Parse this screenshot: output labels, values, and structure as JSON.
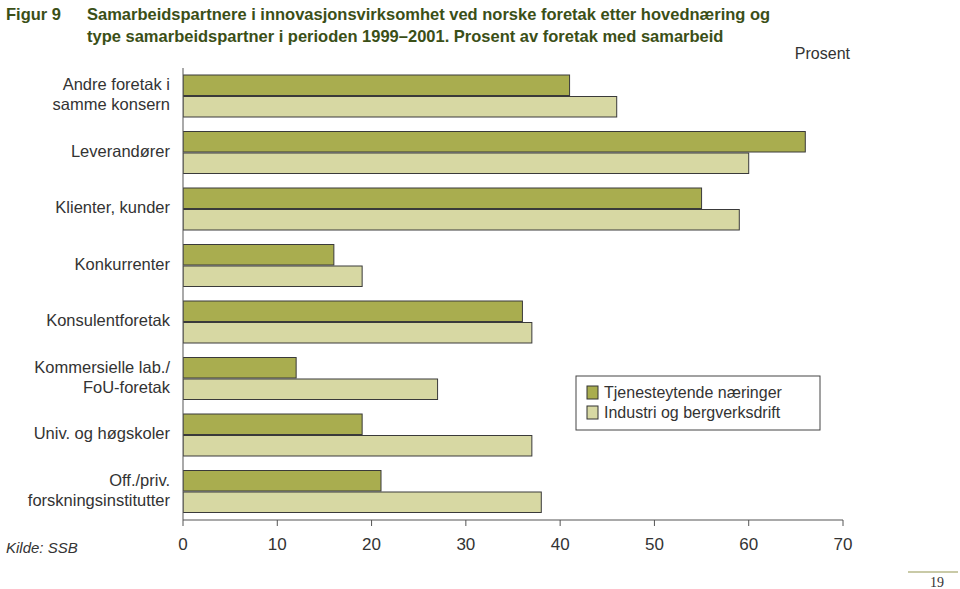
{
  "chart_data": {
    "type": "bar",
    "orientation": "horizontal",
    "figure_label": "Figur 9",
    "title": "Samarbeidspartnere i innovasjonsvirksomhet ved norske foretak etter hovednæring og\ntype samarbeidspartner i perioden 1999–2001. Prosent av foretak med samarbeid",
    "xlabel": "Prosent",
    "source": "Kilde: SSB",
    "page_number": "19",
    "categories": [
      "Andre foretak i\nsamme konsern",
      "Leverandører",
      "Klienter, kunder",
      "Konkurrenter",
      "Konsulentforetak",
      "Kommersielle lab./\nFoU-foretak",
      "Univ. og høgskoler",
      "Off./priv.\nforskningsinstitutter"
    ],
    "series": [
      {
        "name": "Tjenesteytende næringer",
        "color": "#a9ad4f",
        "values": [
          41,
          66,
          55,
          16,
          36,
          12,
          19,
          21
        ]
      },
      {
        "name": "Industri og bergverksdrift",
        "color": "#d7d8a3",
        "values": [
          46,
          60,
          59,
          19,
          37,
          27,
          37,
          38
        ]
      }
    ],
    "xlim": [
      0,
      70
    ],
    "xticks": [
      0,
      10,
      20,
      30,
      40,
      50,
      60,
      70
    ],
    "grid": false,
    "legend": "center right"
  }
}
